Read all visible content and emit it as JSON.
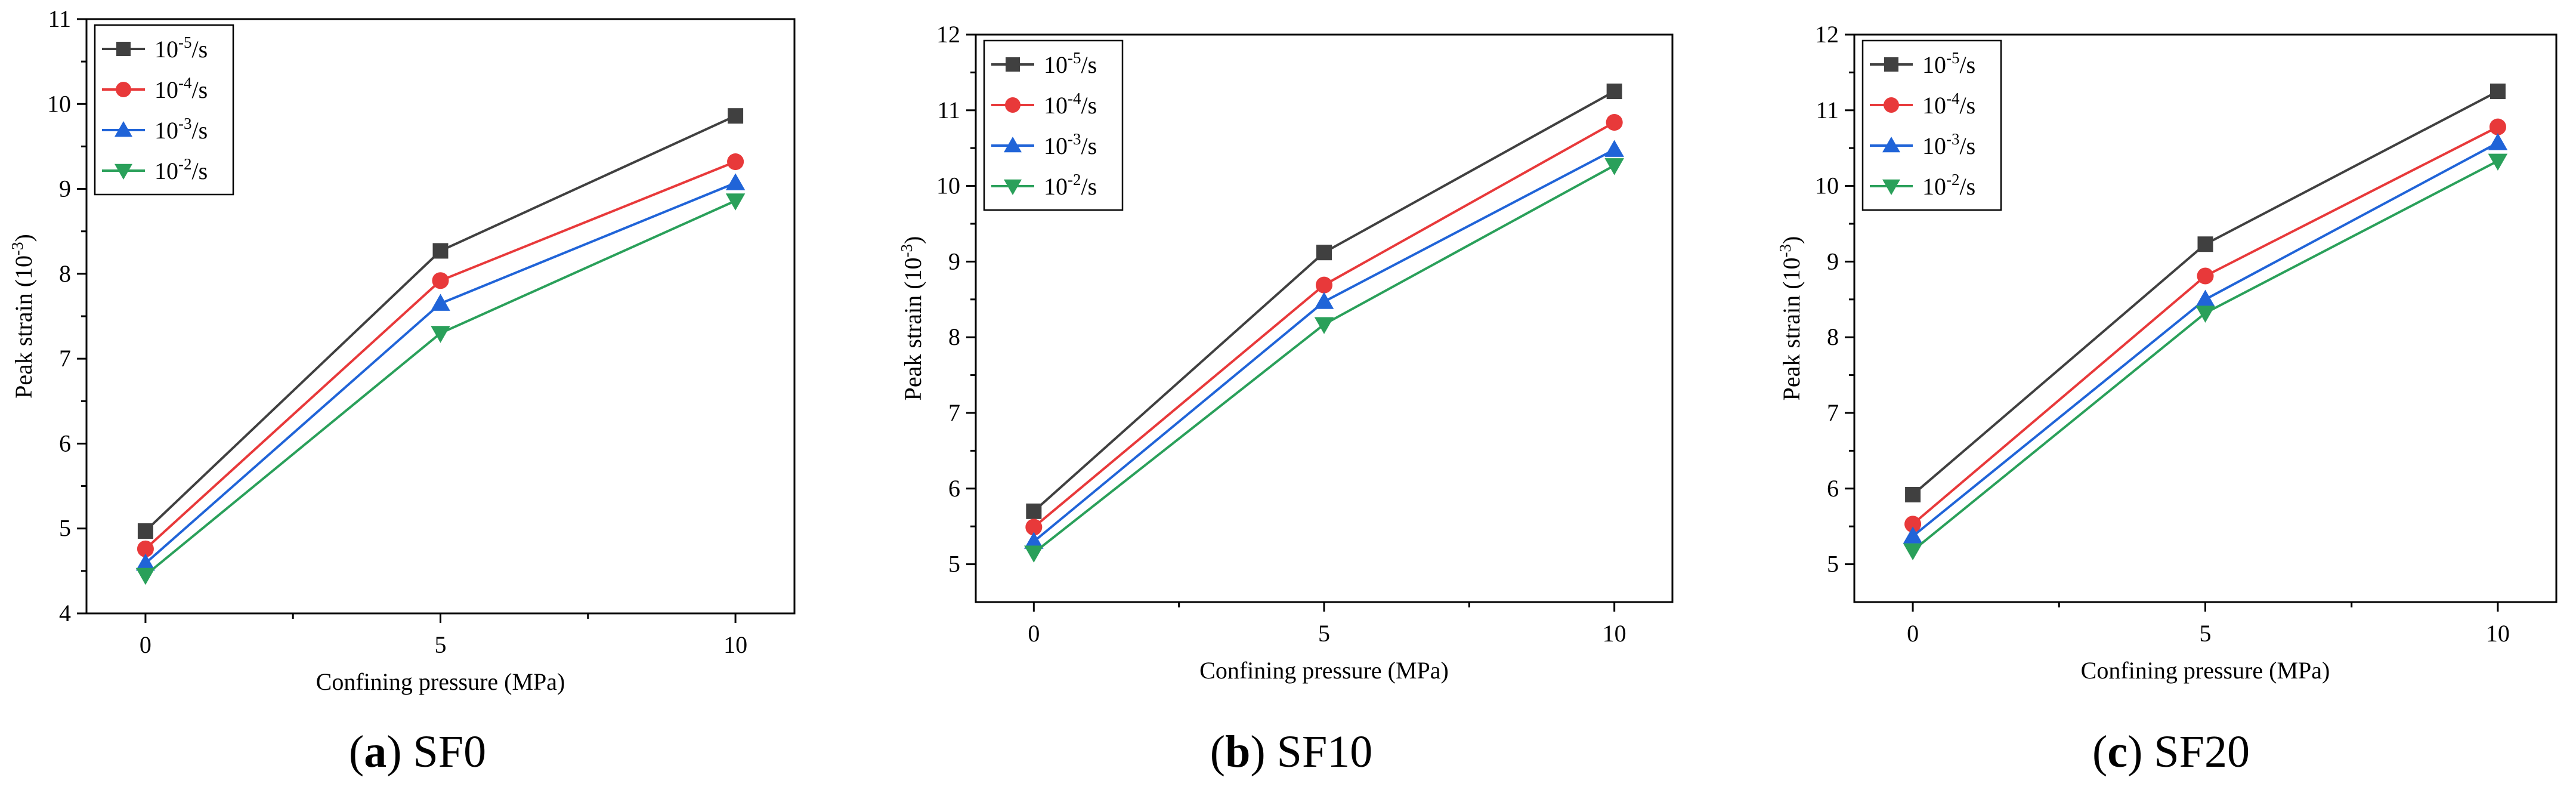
{
  "figure": {
    "legend_entries": [
      {
        "base": "10",
        "exp": "-5",
        "unit": "/s"
      },
      {
        "base": "10",
        "exp": "-4",
        "unit": "/s"
      },
      {
        "base": "10",
        "exp": "-3",
        "unit": "/s"
      },
      {
        "base": "10",
        "exp": "-2",
        "unit": "/s"
      }
    ]
  },
  "chart_data": [
    {
      "type": "line",
      "panel": "a",
      "caption_label": "a",
      "caption_text": "SF0",
      "x": [
        0,
        5,
        10
      ],
      "x_ticks": [
        "0",
        "5",
        "10"
      ],
      "xlim": [
        -1,
        11
      ],
      "ylim": [
        4,
        11
      ],
      "y_ticks": [
        "4",
        "5",
        "6",
        "7",
        "8",
        "9",
        "10",
        "11"
      ],
      "xlabel": "Confining pressure (MPa)",
      "ylabel_main": "Peak strain (10",
      "ylabel_exp": "-3",
      "ylabel_end": ")",
      "legend_position": "top-left",
      "series": [
        {
          "name": "10-5/s",
          "color": "#404040",
          "marker": "square",
          "values": [
            4.97,
            8.27,
            9.86
          ]
        },
        {
          "name": "10-4/s",
          "color": "#e8393a",
          "marker": "circle",
          "values": [
            4.76,
            7.92,
            9.32
          ]
        },
        {
          "name": "10-3/s",
          "color": "#2064d8",
          "marker": "triangle-up",
          "values": [
            4.59,
            7.65,
            9.07
          ]
        },
        {
          "name": "10-2/s",
          "color": "#2aa05a",
          "marker": "triangle-down",
          "values": [
            4.45,
            7.3,
            8.86
          ]
        }
      ]
    },
    {
      "type": "line",
      "panel": "b",
      "caption_label": "b",
      "caption_text": "SF10",
      "x": [
        0,
        5,
        10
      ],
      "x_ticks": [
        "0",
        "5",
        "10"
      ],
      "xlim": [
        -1,
        11
      ],
      "ylim": [
        4.5,
        12
      ],
      "y_ticks": [
        "5",
        "6",
        "7",
        "8",
        "9",
        "10",
        "11",
        "12"
      ],
      "xlabel": "Confining pressure (MPa)",
      "ylabel_main": "Peak strain (10",
      "ylabel_exp": "-3",
      "ylabel_end": ")",
      "legend_position": "top-left",
      "series": [
        {
          "name": "10-5/s",
          "color": "#404040",
          "marker": "square",
          "values": [
            5.7,
            9.12,
            11.25
          ]
        },
        {
          "name": "10-4/s",
          "color": "#e8393a",
          "marker": "circle",
          "values": [
            5.49,
            8.69,
            10.84
          ]
        },
        {
          "name": "10-3/s",
          "color": "#2064d8",
          "marker": "triangle-up",
          "values": [
            5.3,
            8.47,
            10.48
          ]
        },
        {
          "name": "10-2/s",
          "color": "#2aa05a",
          "marker": "triangle-down",
          "values": [
            5.15,
            8.17,
            10.27
          ]
        }
      ]
    },
    {
      "type": "line",
      "panel": "c",
      "caption_label": "c",
      "caption_text": "SF20",
      "x": [
        0,
        5,
        10
      ],
      "x_ticks": [
        "0",
        "5",
        "10"
      ],
      "xlim": [
        -1,
        11
      ],
      "ylim": [
        4.5,
        12
      ],
      "y_ticks": [
        "5",
        "6",
        "7",
        "8",
        "9",
        "10",
        "11",
        "12"
      ],
      "xlabel": "Confining pressure (MPa)",
      "ylabel_main": "Peak strain (10",
      "ylabel_exp": "-3",
      "ylabel_end": ")",
      "legend_position": "top-left",
      "series": [
        {
          "name": "10-5/s",
          "color": "#404040",
          "marker": "square",
          "values": [
            5.92,
            9.23,
            11.25
          ]
        },
        {
          "name": "10-4/s",
          "color": "#e8393a",
          "marker": "circle",
          "values": [
            5.53,
            8.81,
            10.78
          ]
        },
        {
          "name": "10-3/s",
          "color": "#2064d8",
          "marker": "triangle-up",
          "values": [
            5.37,
            8.5,
            10.57
          ]
        },
        {
          "name": "10-2/s",
          "color": "#2aa05a",
          "marker": "triangle-down",
          "values": [
            5.18,
            8.32,
            10.33
          ]
        }
      ]
    }
  ]
}
